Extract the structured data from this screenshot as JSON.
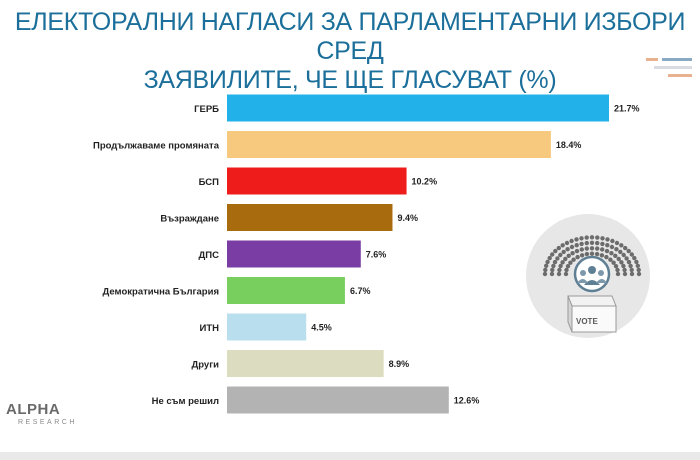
{
  "title_lines": [
    "ЕЛЕКТОРАЛНИ НАГЛАСИ ЗА ПАРЛАМЕНТАРНИ ИЗБОРИ СРЕД",
    "ЗАЯВИЛИТЕ, ЧЕ ЩЕ ГЛАСУВАТ (%)"
  ],
  "logo": {
    "name": "ALPHA",
    "sub": "RESEARCH"
  },
  "illustration": {
    "icon": "parliament-vote-box-icon",
    "box_label": "VOTE"
  },
  "colors": {
    "title": "#1b6f9a",
    "label_text": "#222222",
    "value_text": "#222222",
    "illustration_bg": "#e7e7e7",
    "deco": [
      "#e8b28e",
      "#8aa9c2",
      "#d9dde3"
    ]
  },
  "chart_data": {
    "type": "bar",
    "orientation": "horizontal",
    "title": "ЕЛЕКТОРАЛНИ НАГЛАСИ ЗА ПАРЛАМЕНТАРНИ ИЗБОРИ СРЕД ЗАЯВИЛИТЕ, ЧЕ ЩЕ ГЛАСУВАТ (%)",
    "xlabel": "",
    "ylabel": "",
    "xlim": [
      0,
      21.7
    ],
    "grid": false,
    "legend": "none",
    "value_suffix": "%",
    "categories": [
      "ГЕРБ",
      "Продължаваме промяната",
      "БСП",
      "Възраждане",
      "ДПС",
      "Демократична България",
      "ИТН",
      "Други",
      "Не съм решил"
    ],
    "values": [
      21.7,
      18.4,
      10.2,
      9.4,
      7.6,
      6.7,
      4.5,
      8.9,
      12.6
    ],
    "value_labels": [
      "21.7%",
      "18.4%",
      "10.2%",
      "9.4%",
      "7.6%",
      "6.7%",
      "4.5%",
      "8.9%",
      "12.6%"
    ],
    "bar_colors": [
      "#22b1e8",
      "#f7c97e",
      "#ef1c1c",
      "#a86c0e",
      "#7a3da4",
      "#79cf5e",
      "#b9dfee",
      "#dcdcc0",
      "#b3b3b3"
    ]
  }
}
